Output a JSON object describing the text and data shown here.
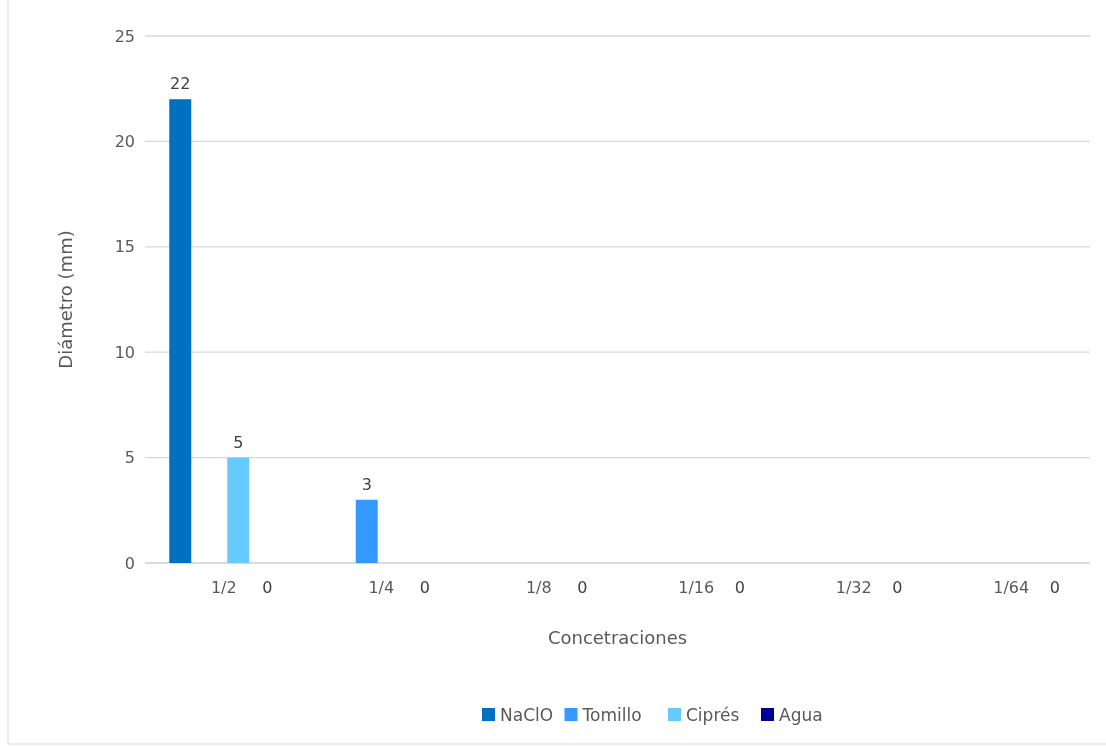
{
  "chart_data": {
    "type": "bar",
    "xlabel": "Concetraciones",
    "ylabel": "Diámetro (mm)",
    "categories": [
      "1/2",
      "1/4",
      "1/8",
      "1/16",
      "1/32",
      "1/64"
    ],
    "series": [
      {
        "name": "NaClO",
        "color": "#0070c0",
        "values": [
          22,
          0,
          0,
          0,
          0,
          0
        ],
        "value_labels": [
          "22",
          null,
          null,
          null,
          null,
          null
        ]
      },
      {
        "name": "Tomillo",
        "color": "#3399ff",
        "values": [
          0,
          3,
          0,
          0,
          0,
          0
        ],
        "value_labels": [
          null,
          "3",
          null,
          null,
          null,
          null
        ]
      },
      {
        "name": "Ciprés",
        "color": "#66ccff",
        "values": [
          5,
          0,
          0,
          0,
          0,
          0
        ],
        "value_labels": [
          "5",
          null,
          null,
          null,
          null,
          null
        ]
      },
      {
        "name": "Agua",
        "color": "#000099",
        "values": [
          0,
          0,
          0,
          0,
          0,
          0
        ],
        "value_labels": [
          "0",
          "0",
          "0",
          "0",
          "0",
          "0"
        ]
      }
    ],
    "ylim": [
      0,
      25
    ],
    "yticks": [
      0,
      5,
      10,
      15,
      20,
      25
    ],
    "grid": "y",
    "legend": "bottom"
  }
}
